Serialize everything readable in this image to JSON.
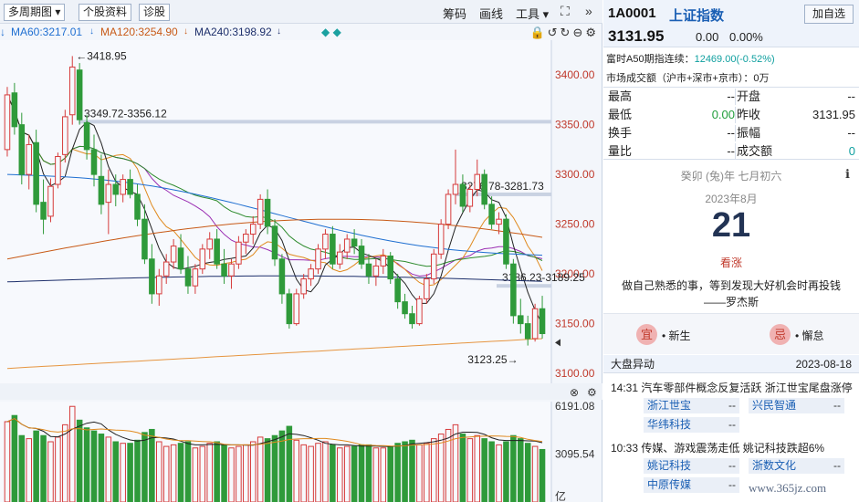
{
  "toolbar": {
    "period_label": "多周期图",
    "stock_info": "个股资料",
    "diagnose": "诊股",
    "chip": "筹码",
    "draw": "画线",
    "tools": "工具",
    "fullscreen_icon": "expand-icon",
    "collapse_icon": "double-chevron-right-icon"
  },
  "ma_legend": [
    {
      "label": "MA60:3217.01",
      "color": "#1f6fd1"
    },
    {
      "label": "MA120:3254.90",
      "color": "#c85a17"
    },
    {
      "label": "MA240:3198.92",
      "color": "#1d2f6b"
    }
  ],
  "chart_data": {
    "type": "candlestick",
    "price_axis": {
      "ticks": [
        "3400.00",
        "3350.00",
        "3300.00",
        "3250.00",
        "3200.00",
        "3150.00",
        "3100.00"
      ],
      "range": [
        3090,
        3435
      ]
    },
    "volume_axis": {
      "ticks": [
        "6191.08",
        "3095.54"
      ],
      "unit": "亿"
    },
    "annotations": {
      "high": "3418.95",
      "low": "3123.25",
      "band1": "3349.72-3356.12",
      "band2": "3276.78-3281.73",
      "band3": "3186.23-3189.25"
    },
    "candles": [
      [
        3325,
        3388,
        3318,
        3380
      ],
      [
        3382,
        3392,
        3340,
        3348
      ],
      [
        3350,
        3362,
        3290,
        3300
      ],
      [
        3300,
        3340,
        3285,
        3330
      ],
      [
        3332,
        3345,
        3262,
        3270
      ],
      [
        3272,
        3295,
        3240,
        3255
      ],
      [
        3258,
        3296,
        3252,
        3288
      ],
      [
        3290,
        3322,
        3286,
        3318
      ],
      [
        3320,
        3365,
        3312,
        3358
      ],
      [
        3360,
        3419,
        3350,
        3408
      ],
      [
        3405,
        3412,
        3350,
        3355
      ],
      [
        3352,
        3360,
        3315,
        3325
      ],
      [
        3325,
        3340,
        3288,
        3300
      ],
      [
        3298,
        3320,
        3260,
        3270
      ],
      [
        3272,
        3305,
        3240,
        3290
      ],
      [
        3290,
        3300,
        3268,
        3280
      ],
      [
        3280,
        3300,
        3272,
        3295
      ],
      [
        3295,
        3305,
        3276,
        3280
      ],
      [
        3280,
        3290,
        3248,
        3255
      ],
      [
        3255,
        3270,
        3210,
        3215
      ],
      [
        3215,
        3230,
        3170,
        3180
      ],
      [
        3180,
        3205,
        3168,
        3198
      ],
      [
        3198,
        3220,
        3190,
        3212
      ],
      [
        3212,
        3235,
        3205,
        3228
      ],
      [
        3226,
        3240,
        3200,
        3205
      ],
      [
        3205,
        3218,
        3180,
        3188
      ],
      [
        3188,
        3210,
        3180,
        3205
      ],
      [
        3205,
        3230,
        3200,
        3225
      ],
      [
        3225,
        3242,
        3215,
        3235
      ],
      [
        3235,
        3245,
        3205,
        3210
      ],
      [
        3210,
        3225,
        3190,
        3198
      ],
      [
        3198,
        3215,
        3185,
        3210
      ],
      [
        3210,
        3238,
        3205,
        3232
      ],
      [
        3232,
        3245,
        3220,
        3240
      ],
      [
        3240,
        3258,
        3230,
        3250
      ],
      [
        3250,
        3280,
        3245,
        3275
      ],
      [
        3275,
        3285,
        3240,
        3248
      ],
      [
        3248,
        3255,
        3208,
        3215
      ],
      [
        3215,
        3220,
        3170,
        3180
      ],
      [
        3180,
        3185,
        3145,
        3150
      ],
      [
        3150,
        3185,
        3148,
        3180
      ],
      [
        3180,
        3200,
        3175,
        3195
      ],
      [
        3195,
        3210,
        3188,
        3205
      ],
      [
        3205,
        3230,
        3200,
        3225
      ],
      [
        3225,
        3245,
        3215,
        3240
      ],
      [
        3240,
        3248,
        3205,
        3210
      ],
      [
        3210,
        3230,
        3205,
        3222
      ],
      [
        3222,
        3240,
        3215,
        3235
      ],
      [
        3235,
        3245,
        3220,
        3228
      ],
      [
        3228,
        3235,
        3205,
        3210
      ],
      [
        3210,
        3220,
        3190,
        3198
      ],
      [
        3198,
        3215,
        3188,
        3208
      ],
      [
        3208,
        3225,
        3200,
        3218
      ],
      [
        3218,
        3222,
        3190,
        3195
      ],
      [
        3195,
        3200,
        3165,
        3172
      ],
      [
        3172,
        3180,
        3155,
        3160
      ],
      [
        3160,
        3168,
        3145,
        3150
      ],
      [
        3150,
        3178,
        3148,
        3175
      ],
      [
        3175,
        3200,
        3170,
        3195
      ],
      [
        3195,
        3225,
        3190,
        3220
      ],
      [
        3220,
        3255,
        3215,
        3250
      ],
      [
        3250,
        3285,
        3245,
        3280
      ],
      [
        3280,
        3325,
        3270,
        3290
      ],
      [
        3290,
        3300,
        3262,
        3268
      ],
      [
        3268,
        3290,
        3262,
        3285
      ],
      [
        3285,
        3315,
        3278,
        3300
      ],
      [
        3300,
        3305,
        3265,
        3270
      ],
      [
        3270,
        3278,
        3245,
        3250
      ],
      [
        3250,
        3262,
        3240,
        3255
      ],
      [
        3255,
        3260,
        3205,
        3210
      ],
      [
        3210,
        3215,
        3150,
        3158
      ],
      [
        3158,
        3175,
        3140,
        3150
      ],
      [
        3150,
        3158,
        3128,
        3135
      ],
      [
        3135,
        3170,
        3132,
        3165
      ],
      [
        3165,
        3178,
        3135,
        3140
      ]
    ],
    "volumes": [
      5200,
      5600,
      4300,
      4100,
      4600,
      4300,
      3900,
      4200,
      5000,
      6191,
      5300,
      4800,
      4600,
      4400,
      4200,
      3900,
      3800,
      3800,
      4000,
      4500,
      4700,
      3900,
      3600,
      3700,
      3800,
      3900,
      3500,
      3600,
      3800,
      3900,
      3700,
      3500,
      3600,
      3700,
      3900,
      4200,
      4100,
      4300,
      4600,
      4900,
      4000,
      3700,
      3600,
      3800,
      3900,
      3700,
      3500,
      3600,
      3600,
      3700,
      3700,
      3500,
      3500,
      3600,
      3800,
      3900,
      4000,
      3700,
      3800,
      4100,
      4400,
      4700,
      5000,
      4400,
      4100,
      4300,
      4100,
      3900,
      3700,
      3900,
      4300,
      4100,
      3800,
      3600,
      3400
    ]
  },
  "quote": {
    "code": "1A0001",
    "name": "上证指数",
    "add_watch": "加自选",
    "price": "3131.95",
    "change": "0.00",
    "pct": "0.00%",
    "a50_label": "富时A50期指连续：",
    "a50_value": "12469.00(-0.52%)",
    "turnover_label": "市场成交额（沪市+深市+京市）：",
    "turnover_value": "0万",
    "stats": [
      {
        "l": "最高",
        "v": "--",
        "l2": "开盘",
        "v2": "--"
      },
      {
        "l": "最低",
        "v": "0.00",
        "l2": "昨收",
        "v2": "3131.95"
      },
      {
        "l": "换手",
        "v": "--",
        "l2": "振幅",
        "v2": "--"
      },
      {
        "l": "量比",
        "v": "--",
        "l2": "成交额",
        "v2": "0"
      }
    ]
  },
  "calendar": {
    "lunar": "癸卯 (兔)年 七月初六",
    "month": "2023年8月",
    "day": "21",
    "mood": "看涨",
    "quote": "做自己熟悉的事，等到发现大好机会时再投钱",
    "author": "——罗杰斯",
    "yi": "宜",
    "yi_text": "• 新生",
    "ji": "忌",
    "ji_text": "• 懈怠"
  },
  "events": {
    "title": "大盘异动",
    "date": "2023-08-18",
    "items": [
      {
        "time": "14:31",
        "text": "汽车零部件概念反复活跃 浙江世宝尾盘涨停",
        "stocks": [
          [
            "浙江世宝",
            "--"
          ],
          [
            "兴民智通",
            "--"
          ],
          [
            "华纬科技",
            "--"
          ]
        ]
      },
      {
        "time": "10:33",
        "text": "传媒、游戏震荡走低 姚记科技跌超6%",
        "stocks": [
          [
            "姚记科技",
            "--"
          ],
          [
            "浙数文化",
            "--"
          ],
          [
            "中原传媒",
            "--"
          ]
        ]
      }
    ]
  },
  "watermark": "www.365jz.com"
}
